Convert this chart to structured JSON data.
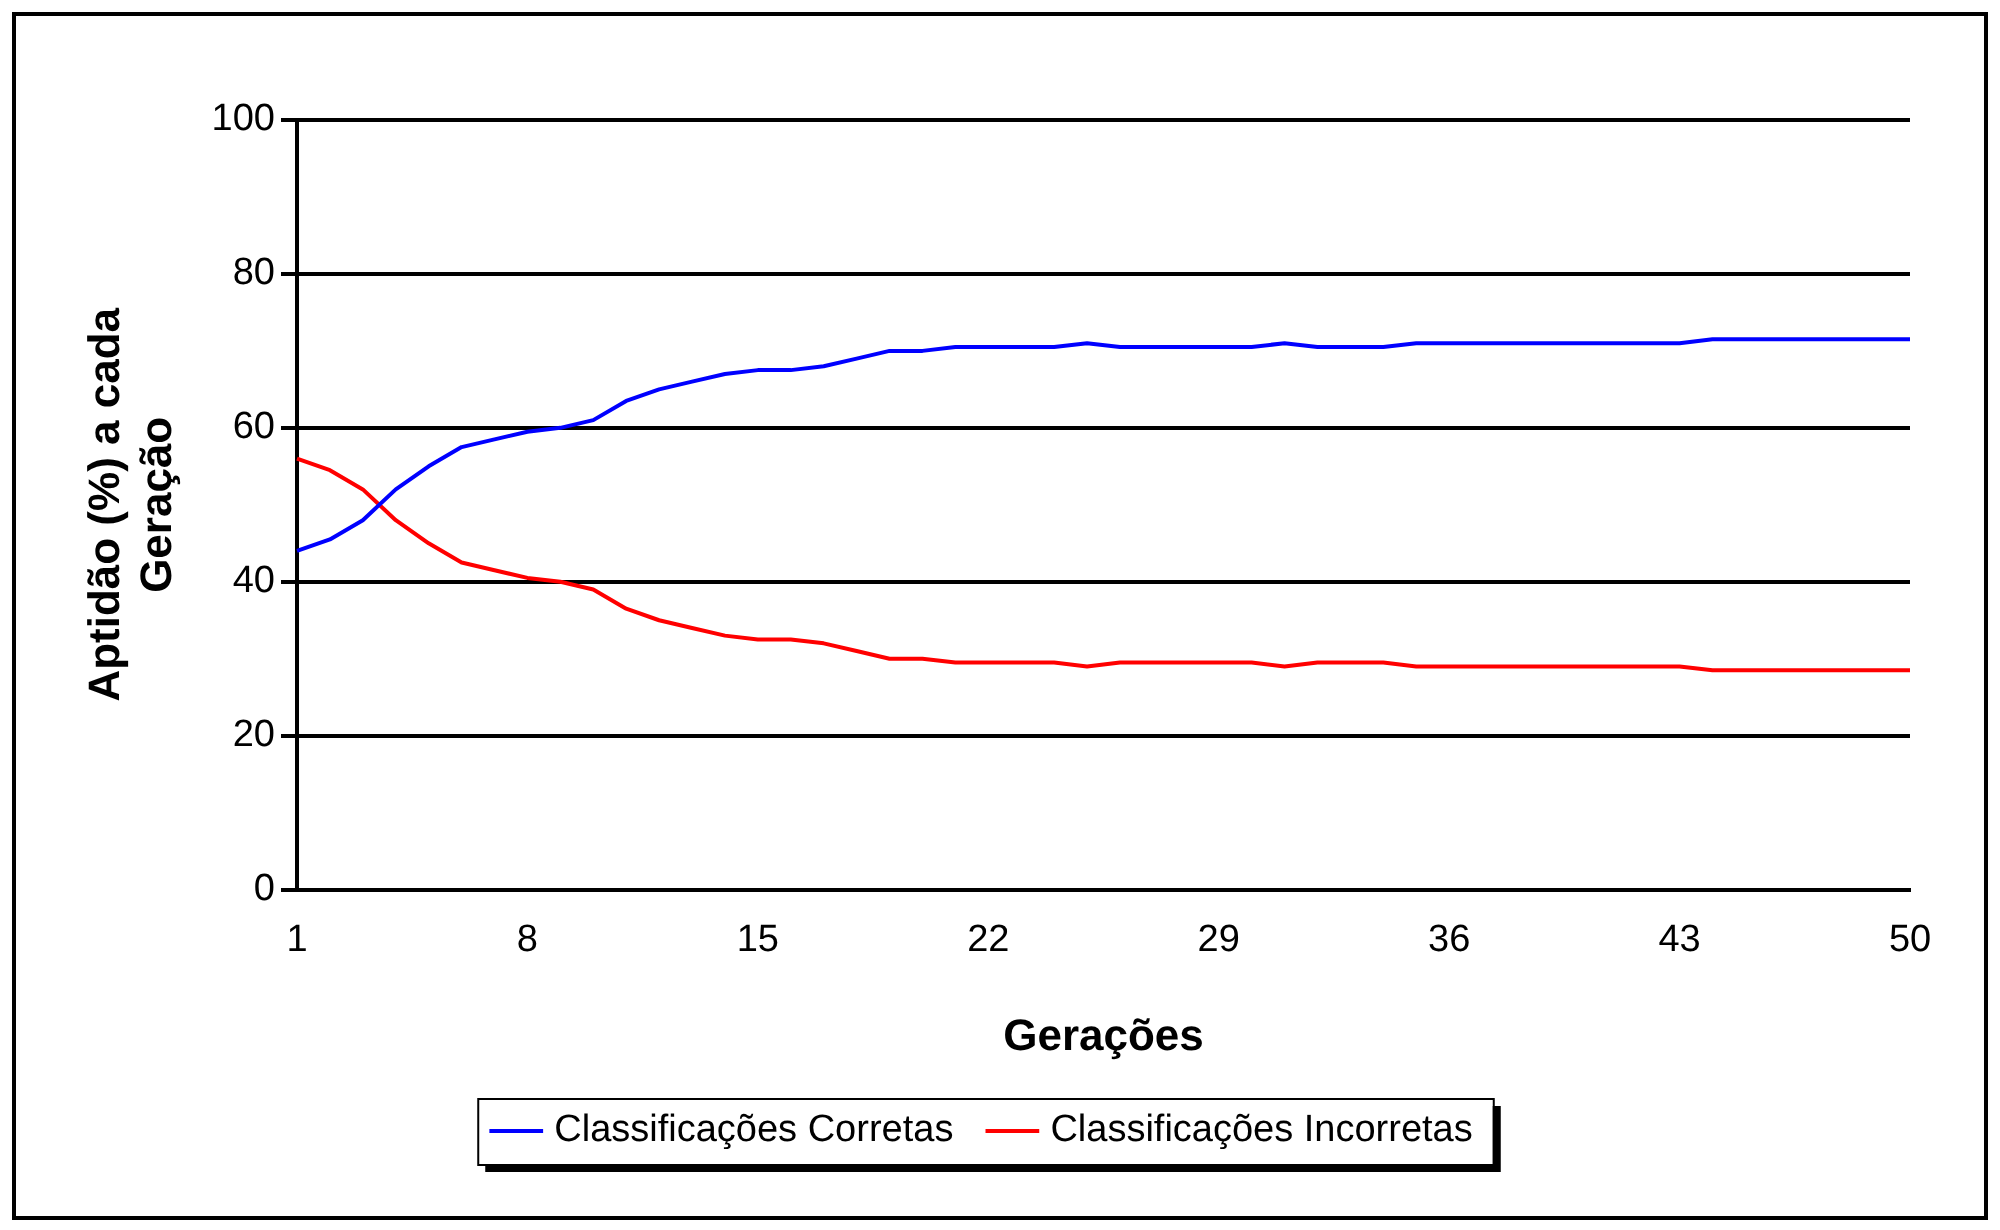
{
  "chart_data": {
    "type": "line",
    "xlabel": "Gerações",
    "ylabel": "Aptidão (%) a cada Geração",
    "categories": [
      "1",
      null,
      null,
      null,
      null,
      null,
      null,
      "8",
      null,
      null,
      null,
      null,
      null,
      null,
      "15",
      null,
      null,
      null,
      null,
      null,
      null,
      "22",
      null,
      null,
      null,
      null,
      null,
      null,
      "29",
      null,
      null,
      null,
      null,
      null,
      null,
      "36",
      null,
      null,
      null,
      null,
      null,
      null,
      "43",
      null,
      null,
      null,
      null,
      null,
      null,
      "50"
    ],
    "series": [
      {
        "name": "Classificações Corretas",
        "color": "#0000ff",
        "values": [
          44,
          45.5,
          48,
          52,
          55,
          57.5,
          58.5,
          59.5,
          60,
          61,
          63.5,
          65,
          66,
          67,
          67.5,
          67.5,
          68,
          69,
          70,
          70,
          70.5,
          70.5,
          70.5,
          70.5,
          71,
          70.5,
          70.5,
          70.5,
          70.5,
          70.5,
          71,
          70.5,
          70.5,
          70.5,
          71,
          71,
          71,
          71,
          71,
          71,
          71,
          71,
          71,
          71.5,
          71.5,
          71.5,
          71.5,
          71.5,
          71.5,
          71.5
        ]
      },
      {
        "name": "Classificações Incorretas",
        "color": "#ff0000",
        "values": [
          56,
          54.5,
          52,
          48,
          45,
          42.5,
          41.5,
          40.5,
          40,
          39,
          36.5,
          35,
          34,
          33,
          32.5,
          32.5,
          32,
          31,
          30,
          30,
          29.5,
          29.5,
          29.5,
          29.5,
          29,
          29.5,
          29.5,
          29.5,
          29.5,
          29.5,
          29,
          29.5,
          29.5,
          29.5,
          29,
          29,
          29,
          29,
          29,
          29,
          29,
          29,
          29,
          28.5,
          28.5,
          28.5,
          28.5,
          28.5,
          28.5,
          28.5
        ]
      }
    ],
    "ylim": [
      0,
      100
    ],
    "yticks": [
      0,
      20,
      40,
      60,
      80,
      100
    ],
    "grid": "y",
    "legend": "bottom",
    "marker": "none",
    "line_style": "solid"
  }
}
